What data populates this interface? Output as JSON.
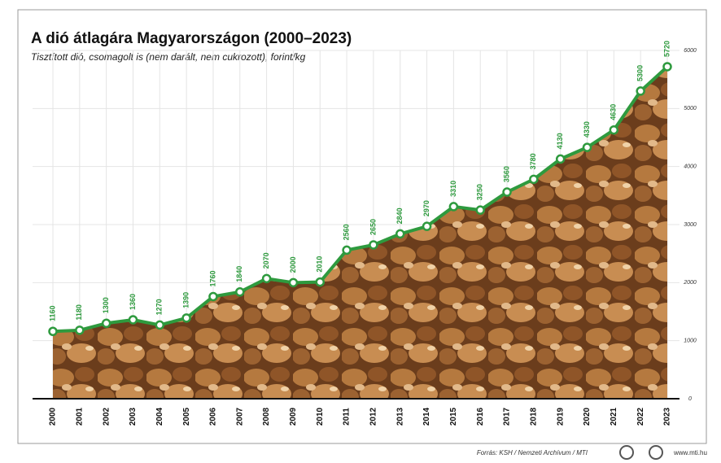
{
  "chart_data": {
    "type": "line",
    "title": "A dió átlagára Magyarországon (2000–2023)",
    "subtitle": "Tisztított dió, csomagolt is (nem darált, nem cukrozott), forint/kg",
    "categories": [
      "2000",
      "2001",
      "2002",
      "2003",
      "2004",
      "2005",
      "2006",
      "2007",
      "2008",
      "2009",
      "2010",
      "2011",
      "2012",
      "2013",
      "2014",
      "2015",
      "2016",
      "2017",
      "2018",
      "2019",
      "2020",
      "2021",
      "2022",
      "2023"
    ],
    "values": [
      1160,
      1180,
      1300,
      1360,
      1270,
      1390,
      1760,
      1840,
      2070,
      2000,
      2010,
      2560,
      2650,
      2840,
      2970,
      3310,
      3250,
      3560,
      3780,
      4130,
      4330,
      4630,
      5300,
      5720
    ],
    "color": "#2e9a3e",
    "ylim": [
      0,
      6000
    ],
    "yticks": [
      0,
      1000,
      2000,
      3000,
      4000,
      5000,
      6000
    ],
    "grid": true,
    "source": "Forrás: KSH / Nemzeti Archívum / MTI",
    "website": "www.mti.hu"
  }
}
